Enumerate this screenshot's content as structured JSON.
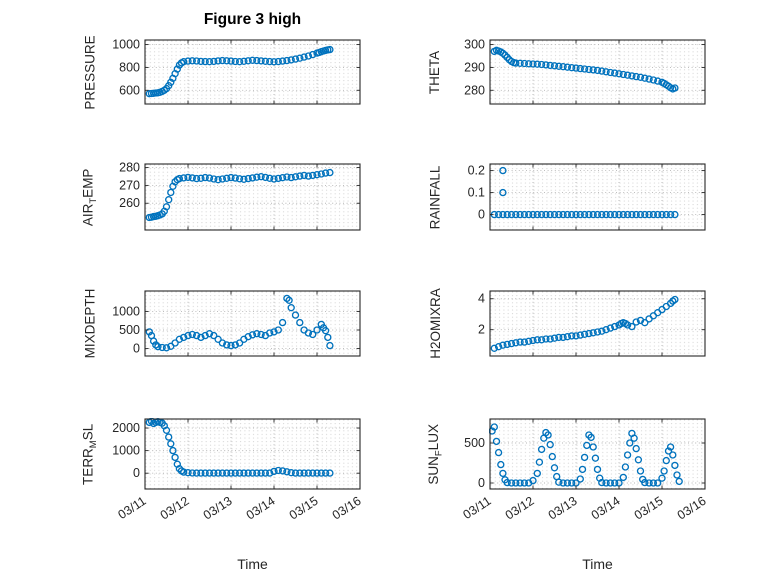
{
  "figure": {
    "title": "Figure 3 high",
    "xlabel": "Time",
    "marker_color": "#0072BD",
    "axis_color": "#262626",
    "major_grid_color": "#b5b5b5",
    "minor_grid_color": "#d4d4d4"
  },
  "xtick_labels": [
    "03/11",
    "03/12",
    "03/13",
    "03/14",
    "03/15",
    "03/16"
  ],
  "chart_data": [
    {
      "id": "pressure",
      "type": "scatter",
      "row": 0,
      "col": 0,
      "show_xlabels": false,
      "ylabel": [
        {
          "t": "PRESSURE"
        }
      ],
      "xlim": [
        0,
        5
      ],
      "xticks": [
        0,
        1,
        2,
        3,
        4,
        5
      ],
      "ylim": [
        480,
        1040
      ],
      "yticks": [
        600,
        800,
        1000
      ],
      "x": [
        0.1,
        0.15,
        0.2,
        0.25,
        0.3,
        0.35,
        0.4,
        0.45,
        0.5,
        0.55,
        0.6,
        0.65,
        0.7,
        0.75,
        0.8,
        0.85,
        0.9,
        1.0,
        1.1,
        1.2,
        1.3,
        1.4,
        1.5,
        1.6,
        1.7,
        1.8,
        1.9,
        2.0,
        2.1,
        2.2,
        2.3,
        2.4,
        2.5,
        2.6,
        2.7,
        2.8,
        2.9,
        3.0,
        3.1,
        3.2,
        3.3,
        3.4,
        3.5,
        3.6,
        3.7,
        3.8,
        3.9,
        4.0,
        4.05,
        4.1,
        4.15,
        4.2,
        4.25,
        4.3
      ],
      "y": [
        570,
        572,
        574,
        576,
        578,
        582,
        590,
        600,
        615,
        640,
        670,
        705,
        745,
        785,
        820,
        840,
        850,
        855,
        858,
        856,
        853,
        851,
        850,
        853,
        857,
        860,
        858,
        855,
        852,
        850,
        854,
        858,
        862,
        860,
        857,
        854,
        851,
        849,
        851,
        855,
        860,
        866,
        873,
        881,
        890,
        900,
        912,
        925,
        931,
        938,
        944,
        949,
        953,
        956
      ]
    },
    {
      "id": "theta",
      "type": "scatter",
      "row": 0,
      "col": 1,
      "show_xlabels": false,
      "ylabel": [
        {
          "t": "THETA"
        }
      ],
      "xlim": [
        0,
        5
      ],
      "xticks": [
        0,
        1,
        2,
        3,
        4,
        5
      ],
      "ylim": [
        274,
        302
      ],
      "yticks": [
        280,
        290,
        300
      ],
      "x": [
        0.1,
        0.15,
        0.2,
        0.25,
        0.3,
        0.35,
        0.4,
        0.45,
        0.5,
        0.55,
        0.6,
        0.7,
        0.8,
        0.9,
        1.0,
        1.1,
        1.2,
        1.3,
        1.4,
        1.5,
        1.6,
        1.7,
        1.8,
        1.9,
        2.0,
        2.1,
        2.2,
        2.3,
        2.4,
        2.5,
        2.6,
        2.7,
        2.8,
        2.9,
        3.0,
        3.1,
        3.2,
        3.3,
        3.4,
        3.5,
        3.6,
        3.7,
        3.8,
        3.9,
        4.0,
        4.05,
        4.1,
        4.15,
        4.2,
        4.25,
        4.3
      ],
      "y": [
        297,
        297.5,
        297.2,
        296.8,
        296.2,
        295.4,
        294.4,
        293.4,
        292.6,
        292.1,
        291.9,
        291.8,
        291.7,
        291.6,
        291.5,
        291.4,
        291.3,
        291.1,
        290.9,
        290.7,
        290.5,
        290.3,
        290.1,
        289.9,
        289.7,
        289.5,
        289.3,
        289.1,
        288.9,
        288.7,
        288.4,
        288.1,
        287.8,
        287.5,
        287.2,
        286.9,
        286.6,
        286.3,
        286.0,
        285.7,
        285.3,
        284.9,
        284.5,
        284.0,
        283.5,
        283.0,
        282.4,
        281.8,
        281.1,
        280.6,
        281.0
      ]
    },
    {
      "id": "airtemp",
      "type": "scatter",
      "row": 1,
      "col": 0,
      "show_xlabels": false,
      "ylabel": [
        {
          "t": "AIR"
        },
        {
          "t": "T",
          "sub": true
        },
        {
          "t": "EMP"
        }
      ],
      "xlim": [
        0,
        5
      ],
      "xticks": [
        0,
        1,
        2,
        3,
        4,
        5
      ],
      "ylim": [
        245,
        282
      ],
      "yticks": [
        260,
        270,
        280
      ],
      "x": [
        0.1,
        0.15,
        0.2,
        0.25,
        0.3,
        0.35,
        0.4,
        0.45,
        0.5,
        0.55,
        0.6,
        0.65,
        0.7,
        0.75,
        0.8,
        0.9,
        1.0,
        1.1,
        1.2,
        1.3,
        1.4,
        1.5,
        1.6,
        1.7,
        1.8,
        1.9,
        2.0,
        2.1,
        2.2,
        2.3,
        2.4,
        2.5,
        2.6,
        2.7,
        2.8,
        2.9,
        3.0,
        3.1,
        3.2,
        3.3,
        3.4,
        3.5,
        3.6,
        3.7,
        3.8,
        3.9,
        4.0,
        4.1,
        4.2,
        4.3
      ],
      "y": [
        252,
        252.2,
        252.5,
        252.7,
        253,
        253.4,
        254,
        255.5,
        258,
        262,
        266,
        269.5,
        272,
        273.2,
        273.8,
        274.2,
        274.5,
        274.2,
        273.8,
        274.0,
        274.4,
        274.1,
        273.6,
        273.2,
        273.6,
        274.0,
        274.4,
        274.1,
        273.7,
        273.4,
        273.8,
        274.2,
        274.6,
        274.9,
        274.5,
        274.0,
        273.6,
        273.9,
        274.3,
        274.7,
        274.4,
        274.8,
        275.2,
        275.6,
        275.2,
        275.6,
        276.0,
        276.4,
        276.9,
        277.2
      ]
    },
    {
      "id": "rainfall",
      "type": "scatter",
      "row": 1,
      "col": 1,
      "show_xlabels": false,
      "ylabel": [
        {
          "t": "RAINFALL"
        }
      ],
      "xlim": [
        0,
        5
      ],
      "xticks": [
        0,
        1,
        2,
        3,
        4,
        5
      ],
      "ylim": [
        -0.07,
        0.23
      ],
      "yticks": [
        0,
        0.1,
        0.2
      ],
      "x": [
        0.3,
        0.3,
        0.1,
        0.2,
        0.3,
        0.4,
        0.5,
        0.6,
        0.7,
        0.8,
        0.9,
        1.0,
        1.1,
        1.2,
        1.3,
        1.4,
        1.5,
        1.6,
        1.7,
        1.8,
        1.9,
        2.0,
        2.1,
        2.2,
        2.3,
        2.4,
        2.5,
        2.6,
        2.7,
        2.8,
        2.9,
        3.0,
        3.1,
        3.2,
        3.3,
        3.4,
        3.5,
        3.6,
        3.7,
        3.8,
        3.9,
        4.0,
        4.1,
        4.2,
        4.3
      ],
      "y": [
        0.2,
        0.1,
        0,
        0,
        0,
        0,
        0,
        0,
        0,
        0,
        0,
        0,
        0,
        0,
        0,
        0,
        0,
        0,
        0,
        0,
        0,
        0,
        0,
        0,
        0,
        0,
        0,
        0,
        0,
        0,
        0,
        0,
        0,
        0,
        0,
        0,
        0,
        0,
        0,
        0,
        0,
        0,
        0,
        0,
        0
      ]
    },
    {
      "id": "mixdepth",
      "type": "scatter",
      "row": 2,
      "col": 0,
      "show_xlabels": false,
      "ylabel": [
        {
          "t": "MIXDEPTH"
        }
      ],
      "xlim": [
        0,
        5
      ],
      "xticks": [
        0,
        1,
        2,
        3,
        4,
        5
      ],
      "ylim": [
        -200,
        1550
      ],
      "yticks": [
        0,
        500,
        1000
      ],
      "x": [
        0.1,
        0.15,
        0.2,
        0.25,
        0.3,
        0.4,
        0.5,
        0.6,
        0.7,
        0.8,
        0.9,
        1.0,
        1.1,
        1.2,
        1.3,
        1.4,
        1.5,
        1.6,
        1.7,
        1.8,
        1.9,
        2.0,
        2.1,
        2.2,
        2.3,
        2.4,
        2.5,
        2.6,
        2.7,
        2.8,
        2.9,
        3.0,
        3.1,
        3.2,
        3.3,
        3.35,
        3.4,
        3.5,
        3.6,
        3.7,
        3.8,
        3.9,
        4.0,
        4.1,
        4.15,
        4.2,
        4.25,
        4.3
      ],
      "y": [
        450,
        350,
        200,
        100,
        50,
        30,
        20,
        60,
        150,
        250,
        300,
        350,
        380,
        350,
        300,
        350,
        400,
        350,
        250,
        150,
        100,
        80,
        100,
        150,
        250,
        320,
        370,
        400,
        380,
        350,
        420,
        450,
        500,
        700,
        1350,
        1300,
        1100,
        900,
        700,
        500,
        420,
        380,
        500,
        650,
        560,
        480,
        300,
        80
      ]
    },
    {
      "id": "h2omixra",
      "type": "scatter",
      "row": 2,
      "col": 1,
      "show_xlabels": false,
      "ylabel": [
        {
          "t": "H2OMIXRA"
        }
      ],
      "xlim": [
        0,
        5
      ],
      "xticks": [
        0,
        1,
        2,
        3,
        4,
        5
      ],
      "ylim": [
        0.3,
        4.5
      ],
      "yticks": [
        2,
        4
      ],
      "x": [
        0.1,
        0.2,
        0.3,
        0.4,
        0.5,
        0.6,
        0.7,
        0.8,
        0.9,
        1.0,
        1.1,
        1.2,
        1.3,
        1.4,
        1.5,
        1.6,
        1.7,
        1.8,
        1.9,
        2.0,
        2.1,
        2.2,
        2.3,
        2.4,
        2.5,
        2.6,
        2.7,
        2.8,
        2.9,
        3.0,
        3.05,
        3.1,
        3.15,
        3.2,
        3.3,
        3.4,
        3.5,
        3.6,
        3.7,
        3.8,
        3.9,
        4.0,
        4.1,
        4.2,
        4.25,
        4.3
      ],
      "y": [
        0.8,
        0.9,
        1.0,
        1.05,
        1.1,
        1.15,
        1.2,
        1.2,
        1.25,
        1.3,
        1.35,
        1.35,
        1.4,
        1.4,
        1.45,
        1.5,
        1.5,
        1.55,
        1.6,
        1.6,
        1.65,
        1.7,
        1.75,
        1.8,
        1.85,
        1.9,
        2.0,
        2.1,
        2.2,
        2.3,
        2.4,
        2.45,
        2.4,
        2.3,
        2.2,
        2.5,
        2.6,
        2.45,
        2.7,
        2.9,
        3.1,
        3.3,
        3.5,
        3.7,
        3.85,
        3.95
      ]
    },
    {
      "id": "terrmsl",
      "type": "scatter",
      "row": 3,
      "col": 0,
      "show_xlabels": true,
      "ylabel": [
        {
          "t": "TERR"
        },
        {
          "t": "M",
          "sub": true
        },
        {
          "t": "SL"
        }
      ],
      "xlim": [
        0,
        5
      ],
      "xticks": [
        0,
        1,
        2,
        3,
        4,
        5
      ],
      "ylim": [
        -700,
        2400
      ],
      "yticks": [
        0,
        1000,
        2000
      ],
      "x": [
        0.1,
        0.15,
        0.2,
        0.25,
        0.3,
        0.35,
        0.4,
        0.45,
        0.5,
        0.55,
        0.6,
        0.65,
        0.7,
        0.75,
        0.8,
        0.85,
        0.9,
        1.0,
        1.1,
        1.2,
        1.3,
        1.4,
        1.5,
        1.6,
        1.7,
        1.8,
        1.9,
        2.0,
        2.1,
        2.2,
        2.3,
        2.4,
        2.5,
        2.6,
        2.7,
        2.8,
        2.9,
        3.0,
        3.1,
        3.2,
        3.3,
        3.4,
        3.5,
        3.6,
        3.7,
        3.8,
        3.9,
        4.0,
        4.1,
        4.2,
        4.3
      ],
      "y": [
        2250,
        2300,
        2200,
        2250,
        2280,
        2250,
        2220,
        2100,
        1900,
        1600,
        1300,
        1000,
        700,
        400,
        200,
        100,
        50,
        20,
        10,
        5,
        5,
        5,
        5,
        5,
        5,
        5,
        5,
        5,
        5,
        5,
        5,
        5,
        5,
        5,
        5,
        5,
        5,
        80,
        120,
        100,
        60,
        20,
        5,
        5,
        5,
        5,
        5,
        5,
        5,
        5,
        5
      ]
    },
    {
      "id": "sunflux",
      "type": "scatter",
      "row": 3,
      "col": 1,
      "show_xlabels": true,
      "ylabel": [
        {
          "t": "SUN"
        },
        {
          "t": "F",
          "sub": true
        },
        {
          "t": "LUX"
        }
      ],
      "xlim": [
        0,
        5
      ],
      "xticks": [
        0,
        1,
        2,
        3,
        4,
        5
      ],
      "ylim": [
        -75,
        800
      ],
      "yticks": [
        0,
        500
      ],
      "x": [
        0.05,
        0.1,
        0.15,
        0.2,
        0.25,
        0.3,
        0.35,
        0.4,
        0.5,
        0.6,
        0.7,
        0.8,
        0.9,
        1.0,
        1.1,
        1.15,
        1.2,
        1.25,
        1.3,
        1.35,
        1.4,
        1.45,
        1.5,
        1.55,
        1.6,
        1.7,
        1.8,
        1.9,
        2.0,
        2.1,
        2.15,
        2.2,
        2.25,
        2.3,
        2.35,
        2.4,
        2.45,
        2.5,
        2.55,
        2.6,
        2.7,
        2.8,
        2.9,
        3.0,
        3.1,
        3.15,
        3.2,
        3.25,
        3.3,
        3.35,
        3.4,
        3.45,
        3.5,
        3.55,
        3.6,
        3.7,
        3.8,
        3.9,
        4.0,
        4.05,
        4.1,
        4.15,
        4.2,
        4.25,
        4.3,
        4.35,
        4.4
      ],
      "y": [
        650,
        700,
        520,
        380,
        230,
        120,
        40,
        5,
        0,
        0,
        0,
        0,
        0,
        30,
        120,
        260,
        420,
        560,
        630,
        600,
        480,
        330,
        190,
        80,
        10,
        0,
        0,
        0,
        0,
        50,
        170,
        320,
        470,
        600,
        570,
        450,
        310,
        170,
        60,
        5,
        0,
        0,
        0,
        0,
        70,
        200,
        350,
        500,
        620,
        560,
        430,
        290,
        150,
        45,
        5,
        0,
        0,
        0,
        60,
        150,
        280,
        400,
        450,
        350,
        220,
        100,
        20
      ]
    }
  ]
}
